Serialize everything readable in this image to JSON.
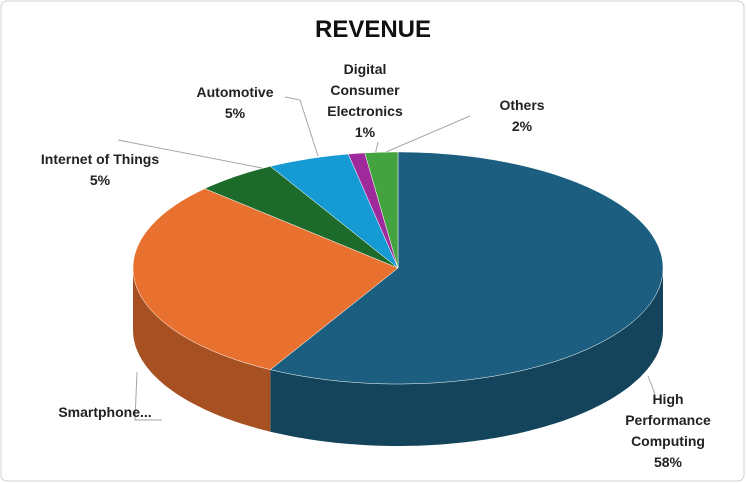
{
  "chart_data": {
    "type": "pie3d",
    "title": "REVENUE",
    "categories": [
      "High Performance Computing",
      "Smartphone...",
      "Internet of Things",
      "Automotive",
      "Digital Consumer Electronics",
      "Others"
    ],
    "values": [
      58,
      29,
      5,
      5,
      1,
      2
    ],
    "value_labels": [
      "58%",
      null,
      "5%",
      "5%",
      "1%",
      "2%"
    ],
    "colors": [
      "#1b5e80",
      "#e8712f",
      "#1d6b2a",
      "#169ad3",
      "#9f2a9c",
      "#43a33e"
    ]
  }
}
